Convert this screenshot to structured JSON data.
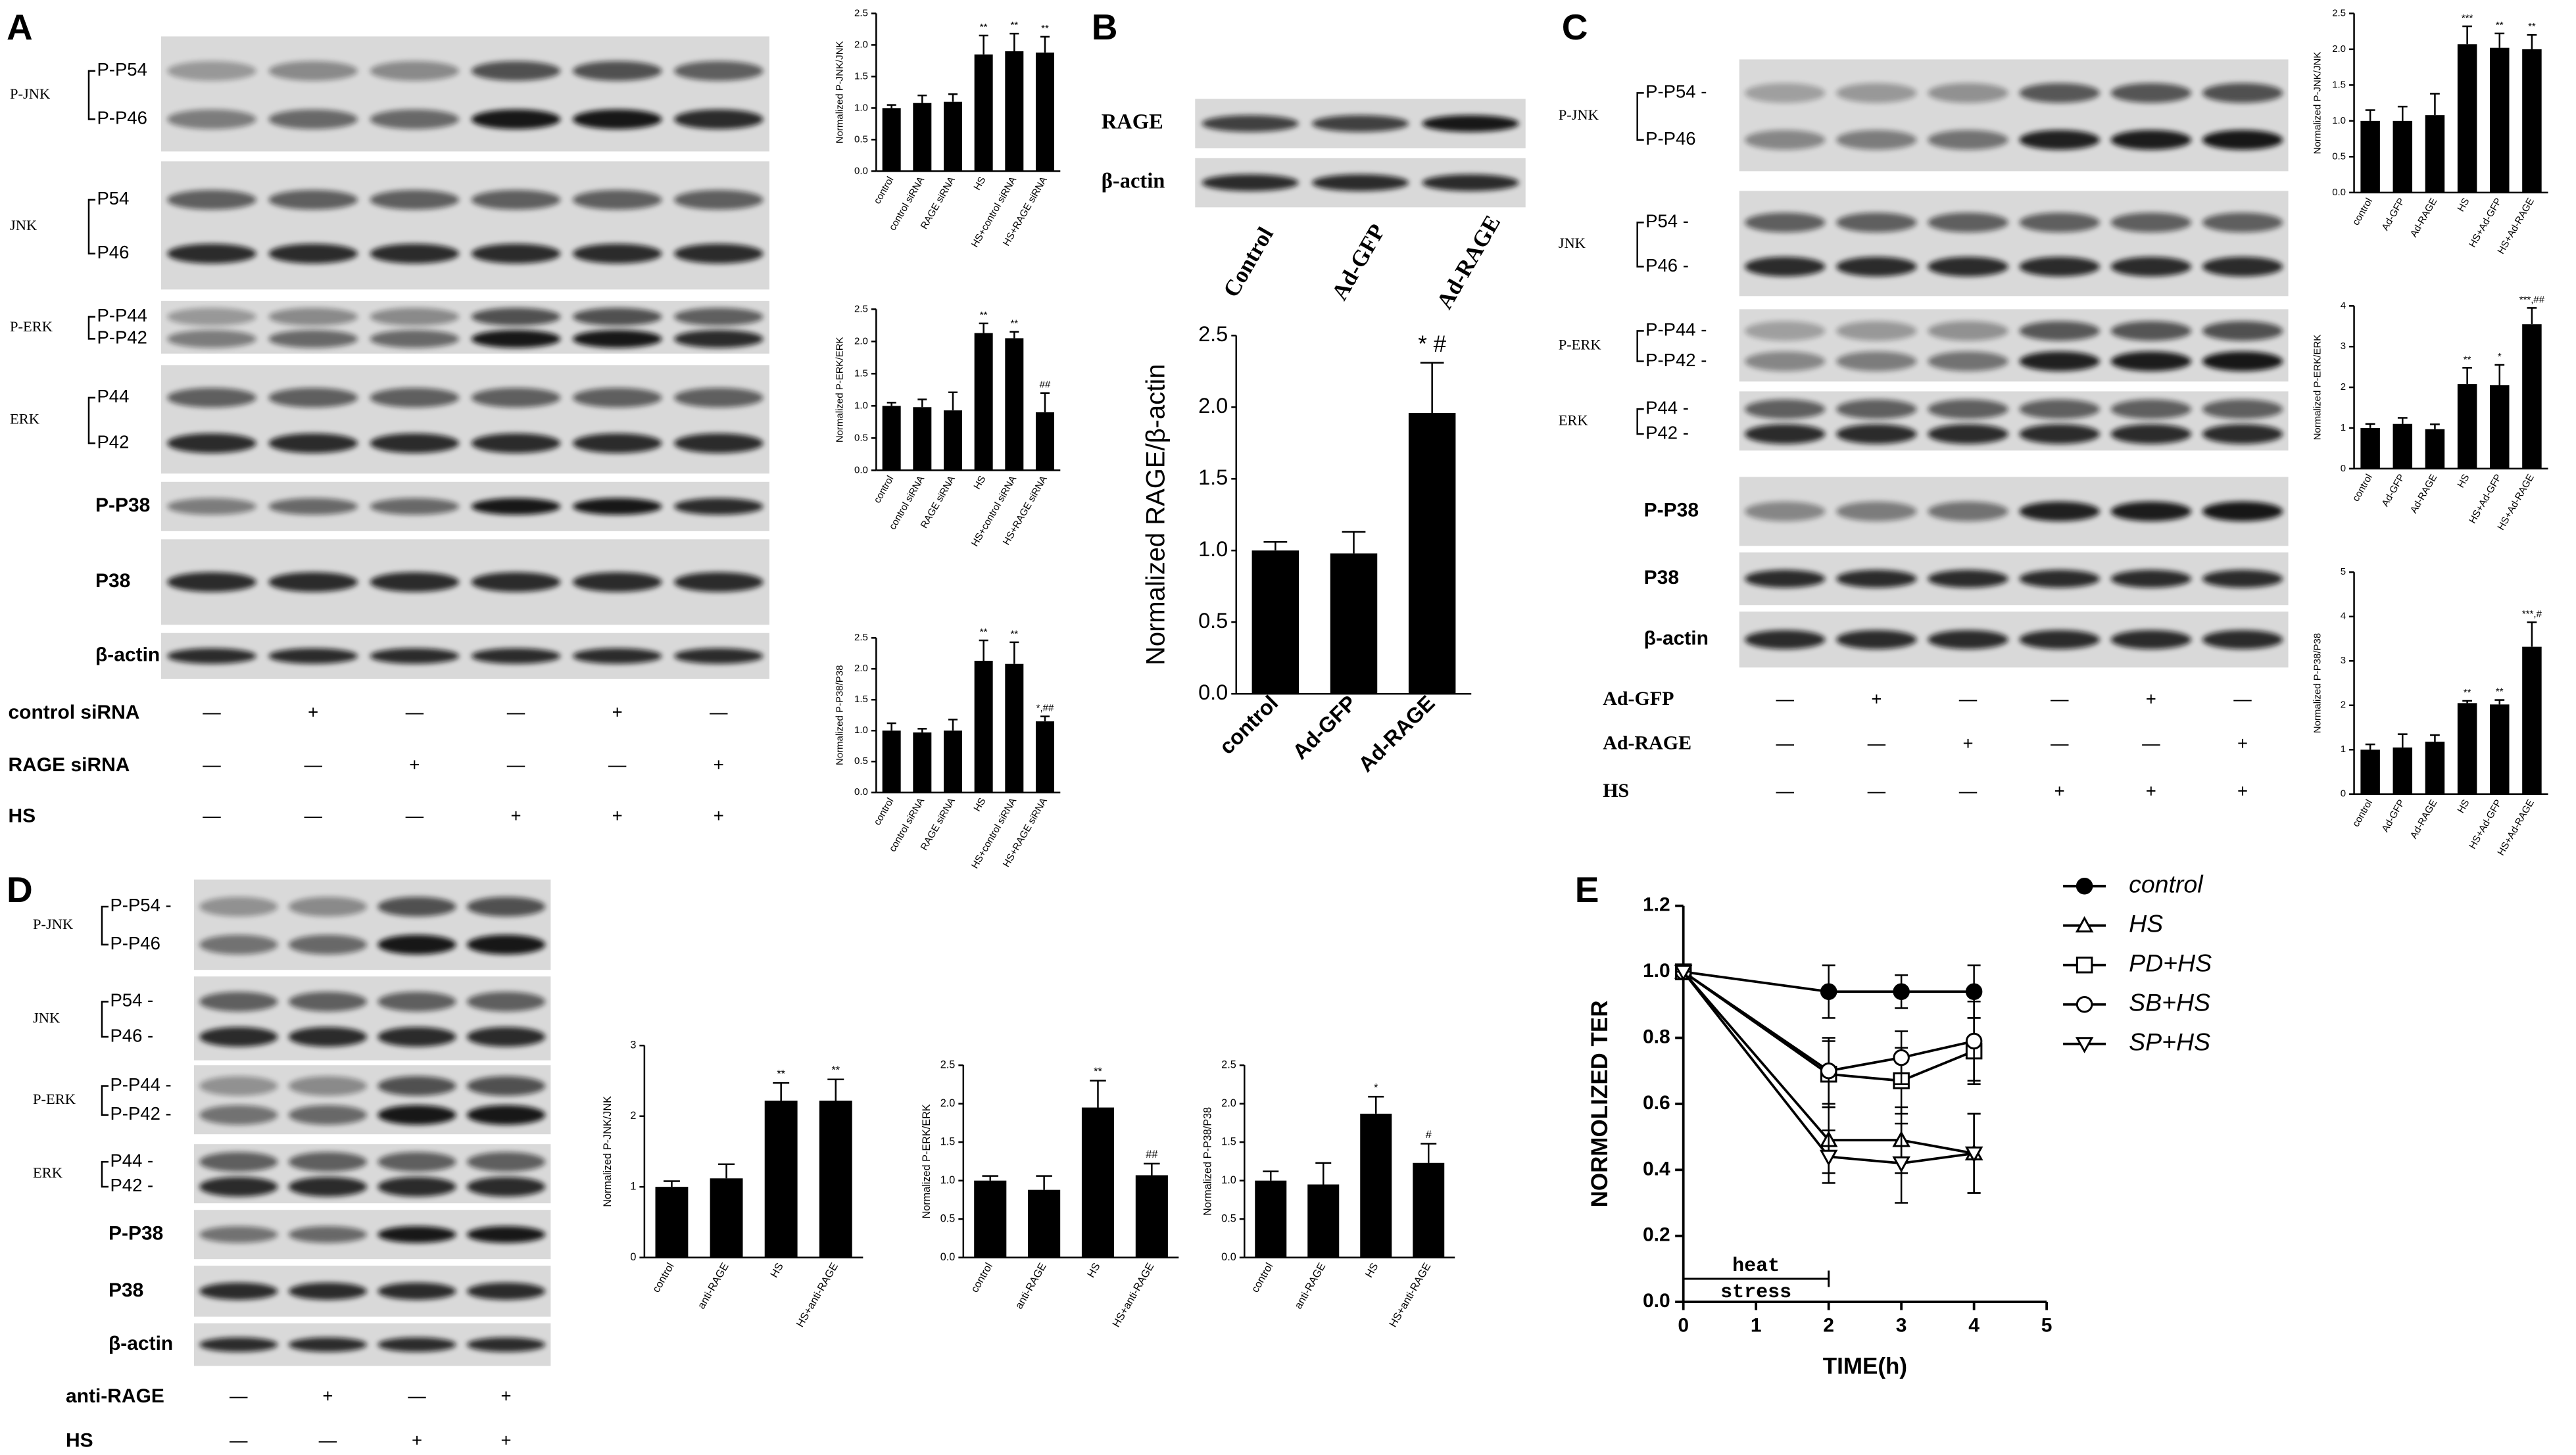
{
  "panel_labels": [
    "A",
    "B",
    "C",
    "D",
    "E"
  ],
  "blots": [
    {
      "rows": [
        {
          "label": "P-JNK",
          "bands": [
            "P-P54",
            "P-P46"
          ]
        },
        {
          "label": "JNK",
          "bands": [
            "P54",
            "P46"
          ]
        },
        {
          "label": "P-ERK",
          "bands": [
            "P-P44",
            "P-P42"
          ]
        },
        {
          "label": "ERK",
          "bands": [
            "P44",
            "P42"
          ]
        },
        {
          "label": "P-P38"
        },
        {
          "label": "P38"
        },
        {
          "label": "β-actin"
        }
      ],
      "treatments": [
        {
          "label": "control siRNA",
          "lanes": [
            "—",
            "+",
            "—",
            "—",
            "+",
            "—"
          ]
        },
        {
          "label": "RAGE siRNA",
          "lanes": [
            "—",
            "—",
            "+",
            "—",
            "—",
            "+"
          ]
        },
        {
          "label": "HS",
          "lanes": [
            "—",
            "—",
            "—",
            "+",
            "+",
            "+"
          ]
        }
      ]
    },
    {
      "rows": [
        {
          "label": "RAGE"
        },
        {
          "label": "β-actin"
        }
      ],
      "lanes": [
        "Control",
        "Ad-GFP",
        "Ad-RAGE"
      ]
    },
    {
      "rows": [
        {
          "label": "P-JNK",
          "bands": [
            "P-P54 -",
            "P-P46"
          ]
        },
        {
          "label": "JNK",
          "bands": [
            "P54 -",
            "P46 -"
          ]
        },
        {
          "label": "P-ERK",
          "bands": [
            "P-P44 -",
            "P-P42 -"
          ]
        },
        {
          "label": "ERK",
          "bands": [
            "P44 -",
            "P42 -"
          ]
        },
        {
          "label": "P-P38"
        },
        {
          "label": "P38"
        },
        {
          "label": "β-actin"
        }
      ],
      "treatments": [
        {
          "label": "Ad-GFP",
          "lanes": [
            "—",
            "+",
            "—",
            "—",
            "+",
            "—"
          ]
        },
        {
          "label": "Ad-RAGE",
          "lanes": [
            "—",
            "—",
            "+",
            "—",
            "—",
            "+"
          ]
        },
        {
          "label": "HS",
          "lanes": [
            "—",
            "—",
            "—",
            "+",
            "+",
            "+"
          ]
        }
      ]
    },
    {
      "rows": [
        {
          "label": "P-JNK",
          "bands": [
            "P-P54 -",
            "P-P46"
          ]
        },
        {
          "label": "JNK",
          "bands": [
            "P54 -",
            "P46 -"
          ]
        },
        {
          "label": "P-ERK",
          "bands": [
            "P-P44 -",
            "P-P42 -"
          ]
        },
        {
          "label": "ERK",
          "bands": [
            "P44 -",
            "P42 -"
          ]
        },
        {
          "label": "P-P38"
        },
        {
          "label": "P38"
        },
        {
          "label": "β-actin"
        }
      ],
      "treatments": [
        {
          "label": "anti-RAGE",
          "lanes": [
            "—",
            "+",
            "—",
            "+"
          ]
        },
        {
          "label": "HS",
          "lanes": [
            "—",
            "—",
            "+",
            "+"
          ]
        }
      ]
    }
  ],
  "chart_data": [
    {
      "type": "bar",
      "y_label": "Normalized P-JNK/JNK",
      "color": "#000000",
      "categories": [
        "control",
        "control siRNA",
        "RAGE siRNA",
        "HS",
        "HS+control siRNA",
        "HS+RAGE siRNA"
      ],
      "values": [
        1.0,
        1.08,
        1.1,
        1.85,
        1.9,
        1.88
      ],
      "errors": [
        0.05,
        0.12,
        0.12,
        0.3,
        0.28,
        0.25
      ],
      "annotations": [
        null,
        null,
        null,
        "**",
        "**",
        "**"
      ],
      "ylim": [
        0,
        2.5
      ],
      "yticks": [
        {
          "value": 0,
          "label": "0.0"
        },
        0.5,
        {
          "value": 1,
          "label": "1.0"
        },
        1.5,
        {
          "value": 2,
          "label": "2.0"
        },
        2.5
      ]
    },
    {
      "type": "bar",
      "y_label": "Normalized P-ERK/ERK",
      "color": "#000000",
      "categories": [
        "control",
        "control siRNA",
        "RAGE siRNA",
        "HS",
        "HS+control siRNA",
        "HS+RAGE siRNA"
      ],
      "values": [
        1.0,
        0.98,
        0.93,
        2.13,
        2.05,
        0.9
      ],
      "errors": [
        0.05,
        0.12,
        0.28,
        0.15,
        0.1,
        0.3
      ],
      "annotations": [
        null,
        null,
        null,
        "**",
        "**",
        "##"
      ],
      "ylim": [
        0,
        2.5
      ],
      "yticks": [
        {
          "value": 0,
          "label": "0.0"
        },
        0.5,
        {
          "value": 1,
          "label": "1.0"
        },
        1.5,
        {
          "value": 2,
          "label": "2.0"
        },
        2.5
      ]
    },
    {
      "type": "bar",
      "y_label": "Normalized P-P38/P38",
      "color": "#000000",
      "categories": [
        "control",
        "control siRNA",
        "RAGE siRNA",
        "HS",
        "HS+control siRNA",
        "HS+RAGE siRNA"
      ],
      "values": [
        1.0,
        0.97,
        1.0,
        2.13,
        2.08,
        1.15
      ],
      "errors": [
        0.12,
        0.06,
        0.18,
        0.33,
        0.35,
        0.08
      ],
      "annotations": [
        null,
        null,
        null,
        "**",
        "**",
        "*,##"
      ],
      "ylim": [
        0,
        2.5
      ],
      "yticks": [
        {
          "value": 0,
          "label": "0.0"
        },
        0.5,
        {
          "value": 1,
          "label": "1.0"
        },
        1.5,
        {
          "value": 2,
          "label": "2.0"
        },
        2.5
      ]
    },
    {
      "type": "bar",
      "y_label": "Normalized RAGE/β-actin",
      "color": "#000000",
      "categories": [
        "control",
        "Ad-GFP",
        "Ad-RAGE"
      ],
      "values": [
        1.0,
        0.98,
        1.96
      ],
      "errors": [
        0.06,
        0.15,
        0.35
      ],
      "annotations": [
        null,
        null,
        "* #"
      ],
      "ylim": [
        0,
        2.5
      ],
      "yticks": [
        {
          "value": 0,
          "label": "0.0"
        },
        0.5,
        {
          "value": 1,
          "label": "1.0"
        },
        1.5,
        {
          "value": 2,
          "label": "2.0"
        },
        2.5
      ]
    },
    {
      "type": "bar",
      "y_label": "Normalized P-JNK/JNK",
      "color": "#000000",
      "categories": [
        "control",
        "Ad-GFP",
        "Ad-RAGE",
        "HS",
        "HS+Ad-GFP",
        "HS+Ad-RAGE"
      ],
      "values": [
        1.0,
        1.0,
        1.08,
        2.07,
        2.02,
        2.0
      ],
      "errors": [
        0.15,
        0.2,
        0.3,
        0.25,
        0.2,
        0.2
      ],
      "annotations": [
        null,
        null,
        null,
        "***",
        "**",
        "**"
      ],
      "ylim": [
        0,
        2.5
      ],
      "yticks": [
        {
          "value": 0,
          "label": "0.0"
        },
        0.5,
        {
          "value": 1,
          "label": "1.0"
        },
        1.5,
        {
          "value": 2,
          "label": "2.0"
        },
        2.5
      ]
    },
    {
      "type": "bar",
      "y_label": "Normalized P-ERK/ERK",
      "color": "#000000",
      "categories": [
        "control",
        "Ad-GFP",
        "Ad-RAGE",
        "HS",
        "HS+Ad-GFP",
        "HS+Ad-RAGE"
      ],
      "values": [
        1.0,
        1.1,
        0.97,
        2.08,
        2.05,
        3.55
      ],
      "errors": [
        0.1,
        0.15,
        0.12,
        0.4,
        0.5,
        0.4
      ],
      "annotations": [
        null,
        null,
        null,
        "**",
        "*",
        "***,##"
      ],
      "ylim": [
        0,
        4
      ],
      "yticks": [
        0,
        1,
        2,
        3,
        4
      ]
    },
    {
      "type": "bar",
      "y_label": "Normalized P-P38/P38",
      "color": "#000000",
      "categories": [
        "control",
        "Ad-GFP",
        "Ad-RAGE",
        "HS",
        "HS+Ad-GFP",
        "HS+Ad-RAGE"
      ],
      "values": [
        1.0,
        1.05,
        1.18,
        2.05,
        2.02,
        3.32
      ],
      "errors": [
        0.12,
        0.3,
        0.15,
        0.05,
        0.1,
        0.55
      ],
      "annotations": [
        null,
        null,
        null,
        "**",
        "**",
        "***,#"
      ],
      "ylim": [
        0,
        5
      ],
      "yticks": [
        0,
        1,
        2,
        3,
        4,
        5
      ]
    },
    {
      "type": "bar",
      "y_label": "Normalized P-JNK/JNK",
      "color": "#000000",
      "categories": [
        "control",
        "anti-RAGE",
        "HS",
        "HS+anti-RAGE"
      ],
      "values": [
        1.0,
        1.12,
        2.22,
        2.22
      ],
      "errors": [
        0.08,
        0.2,
        0.25,
        0.3
      ],
      "annotations": [
        null,
        null,
        "**",
        "**"
      ],
      "ylim": [
        0,
        3
      ],
      "yticks": [
        0,
        1,
        2,
        3
      ]
    },
    {
      "type": "bar",
      "y_label": "Normalized P-ERK/ERK",
      "color": "#000000",
      "categories": [
        "control",
        "anti-RAGE",
        "HS",
        "HS+anti-RAGE"
      ],
      "values": [
        1.0,
        0.88,
        1.95,
        1.07
      ],
      "errors": [
        0.06,
        0.18,
        0.35,
        0.15
      ],
      "annotations": [
        null,
        null,
        "**",
        "##"
      ],
      "ylim": [
        0,
        2.5
      ],
      "yticks": [
        {
          "value": 0,
          "label": "0.0"
        },
        0.5,
        {
          "value": 1,
          "label": "1.0"
        },
        1.5,
        {
          "value": 2,
          "label": "2.0"
        },
        2.5
      ]
    },
    {
      "type": "bar",
      "y_label": "Normalized P-P38/P38",
      "color": "#000000",
      "categories": [
        "control",
        "anti-RAGE",
        "HS",
        "HS+anti-RAGE"
      ],
      "values": [
        1.0,
        0.95,
        1.87,
        1.23
      ],
      "errors": [
        0.12,
        0.28,
        0.22,
        0.25
      ],
      "annotations": [
        null,
        null,
        "*",
        "#"
      ],
      "ylim": [
        0,
        2.5
      ],
      "yticks": [
        {
          "value": 0,
          "label": "0.0"
        },
        0.5,
        {
          "value": 1,
          "label": "1.0"
        },
        1.5,
        {
          "value": 2,
          "label": "2.0"
        },
        2.5
      ]
    },
    {
      "type": "line",
      "x_label": "TIME(h)",
      "y_label": "NORMOLIZED TER",
      "legend": "right",
      "x": [
        0,
        2,
        3,
        4
      ],
      "series": [
        {
          "name": "control",
          "color": "#000000",
          "marker": "circle-filled",
          "values": [
            1.0,
            0.94,
            0.94,
            0.94
          ],
          "errors": [
            0,
            0.08,
            0.05,
            0.08
          ]
        },
        {
          "name": "HS",
          "color": "#000000",
          "marker": "triangle-up",
          "values": [
            1.0,
            0.49,
            0.49,
            0.45
          ],
          "errors": [
            0,
            0.1,
            0.1,
            0.12
          ]
        },
        {
          "name": "PD+HS",
          "color": "#000000",
          "marker": "square",
          "values": [
            1.0,
            0.69,
            0.67,
            0.76
          ],
          "errors": [
            0,
            0.1,
            0.1,
            0.1
          ]
        },
        {
          "name": "SB+HS",
          "color": "#000000",
          "marker": "circle",
          "values": [
            1.0,
            0.7,
            0.74,
            0.79
          ],
          "errors": [
            0,
            0.1,
            0.08,
            0.12
          ]
        },
        {
          "name": "SP+HS",
          "color": "#000000",
          "marker": "triangle-down",
          "values": [
            1.0,
            0.44,
            0.42,
            0.45
          ],
          "errors": [
            0,
            0.08,
            0.12,
            0.12
          ]
        }
      ],
      "annotation": {
        "lines": [
          "heat",
          "stress"
        ],
        "span": [
          0,
          2
        ],
        "y": 0.07
      },
      "xlim": [
        0,
        5
      ],
      "xticks": [
        0,
        1,
        2,
        3,
        4,
        5
      ],
      "ylim": [
        0,
        1.2
      ],
      "yticks": [
        {
          "value": 0,
          "label": "0.0"
        },
        0.2,
        0.4,
        0.6,
        0.8,
        {
          "value": 1,
          "label": "1.0"
        },
        1.2
      ]
    }
  ]
}
